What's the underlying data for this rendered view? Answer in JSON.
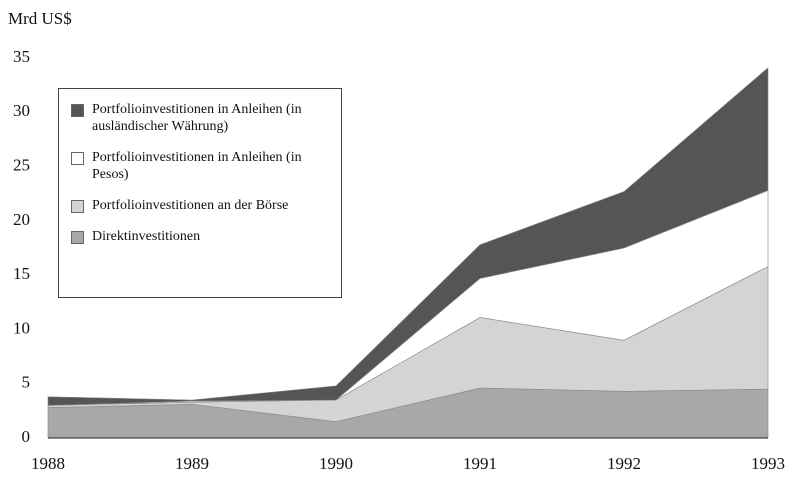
{
  "chart_data": {
    "type": "stacked_area",
    "y_label": "Mrd US$",
    "categories": [
      "1988",
      "1989",
      "1990",
      "1991",
      "1992",
      "1993"
    ],
    "series": [
      {
        "name": "Direktinvestitionen",
        "color": "#a8a8a8",
        "values": [
          2.8,
          3.1,
          1.5,
          4.6,
          4.3,
          4.5
        ]
      },
      {
        "name": "Portfolioinvestitionen an der Börse",
        "color": "#d4d4d4",
        "values": [
          0.2,
          0.2,
          2.0,
          6.5,
          4.7,
          11.3
        ]
      },
      {
        "name": "Portfolioinvestitionen in Anleihen (in Pesos)",
        "color": "#ffffff",
        "values": [
          0,
          0.1,
          0,
          3.6,
          8.5,
          7.0
        ]
      },
      {
        "name": "Portfolioinvestitionen in Anleihen (in ausländischer Währung)",
        "color": "#555555",
        "values": [
          0.8,
          0.1,
          1.3,
          3.1,
          5.2,
          11.3
        ]
      }
    ],
    "ylim": [
      0,
      35
    ],
    "yticks": [
      0,
      5,
      10,
      15,
      20,
      25,
      30,
      35
    ]
  }
}
